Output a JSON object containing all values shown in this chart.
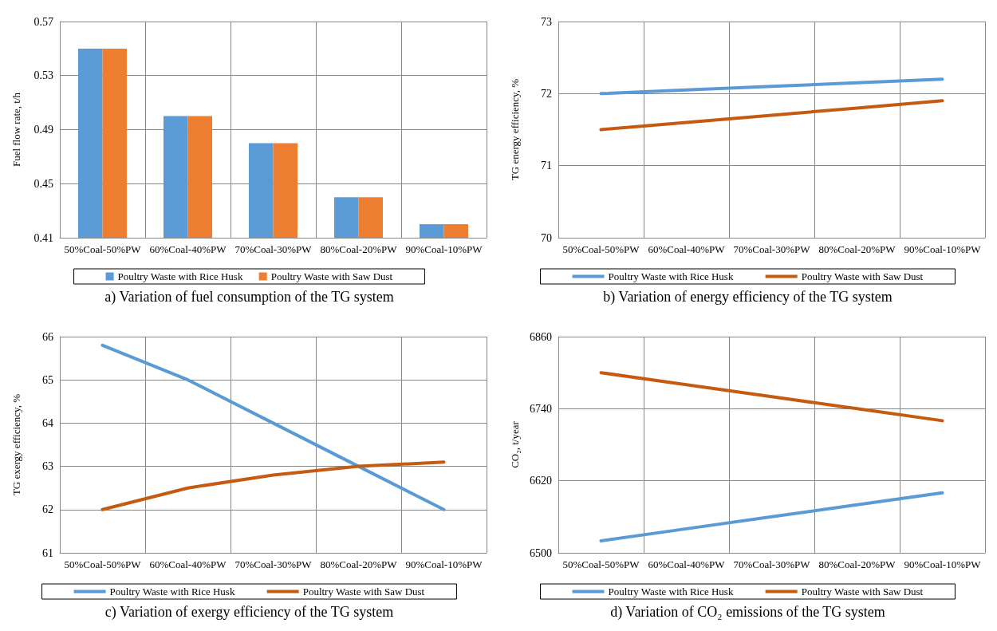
{
  "chart_data": [
    {
      "type": "bar",
      "ylabel": "Fuel flow rate, t/h",
      "categories": [
        "50%Coal-50%PW",
        "60%Coal-40%PW",
        "70%Coal-30%PW",
        "80%Coal-20%PW",
        "90%Coal-10%PW"
      ],
      "series": [
        {
          "name": "Poultry Waste with Rice Husk",
          "color": "#5b9bd5",
          "values": [
            0.55,
            0.5,
            0.48,
            0.44,
            0.42
          ]
        },
        {
          "name": "Poultry Waste with Saw Dust",
          "color": "#ed7d31",
          "values": [
            0.55,
            0.5,
            0.48,
            0.44,
            0.42
          ]
        }
      ],
      "ylim": [
        0.41,
        0.57
      ],
      "yticks": [
        0.41,
        0.45,
        0.49,
        0.53,
        0.57
      ],
      "grid": true,
      "legend": "bottom",
      "annotations": [
        "a) Variation of fuel consumption of the TG system"
      ]
    },
    {
      "type": "line",
      "ylabel": "TG energy efficiency, %",
      "categories": [
        "50%Coal-50%PW",
        "60%Coal-40%PW",
        "70%Coal-30%PW",
        "80%Coal-20%PW",
        "90%Coal-10%PW"
      ],
      "series": [
        {
          "name": "Poultry Waste with Rice Husk",
          "color": "#5b9bd5",
          "values": [
            72.0,
            72.05,
            72.1,
            72.15,
            72.2
          ]
        },
        {
          "name": "Poultry Waste with Saw Dust",
          "color": "#c55a11",
          "values": [
            71.5,
            71.6,
            71.7,
            71.8,
            71.9
          ]
        }
      ],
      "ylim": [
        70,
        73
      ],
      "yticks": [
        70,
        71,
        72,
        73
      ],
      "grid": true,
      "legend": "bottom",
      "marker": "none",
      "annotations": [
        "b) Variation of energy efficiency of the TG system"
      ]
    },
    {
      "type": "line",
      "ylabel": "TG exergy efficiency, %",
      "categories": [
        "50%Coal-50%PW",
        "60%Coal-40%PW",
        "70%Coal-30%PW",
        "80%Coal-20%PW",
        "90%Coal-10%PW"
      ],
      "series": [
        {
          "name": "Poultry Waste with Rice Husk",
          "color": "#5b9bd5",
          "values": [
            65.8,
            65.0,
            64.0,
            63.0,
            62.0
          ]
        },
        {
          "name": "Poultry Waste with Saw Dust",
          "color": "#c55a11",
          "values": [
            62.0,
            62.5,
            62.8,
            63.0,
            63.1
          ]
        }
      ],
      "ylim": [
        61,
        66
      ],
      "yticks": [
        61,
        62,
        63,
        64,
        65,
        66
      ],
      "grid": true,
      "legend": "bottom",
      "marker": "none",
      "annotations": [
        "c) Variation of exergy efficiency of the TG system"
      ]
    },
    {
      "type": "line",
      "ylabel": "CO₂, t/year",
      "categories": [
        "50%Coal-50%PW",
        "60%Coal-40%PW",
        "70%Coal-30%PW",
        "80%Coal-20%PW",
        "90%Coal-10%PW"
      ],
      "series": [
        {
          "name": "Poultry Waste with Rice Husk",
          "color": "#5b9bd5",
          "values": [
            6520,
            6540,
            6560,
            6580,
            6600
          ]
        },
        {
          "name": "Poultry Waste with Saw Dust",
          "color": "#c55a11",
          "values": [
            6800,
            6780,
            6760,
            6740,
            6720
          ]
        }
      ],
      "ylim": [
        6500,
        6860
      ],
      "yticks": [
        6500,
        6620,
        6740,
        6860
      ],
      "grid": true,
      "legend": "bottom",
      "marker": "none",
      "annotations": [
        "d) Variation of CO₂ emissions of the TG system"
      ]
    }
  ]
}
